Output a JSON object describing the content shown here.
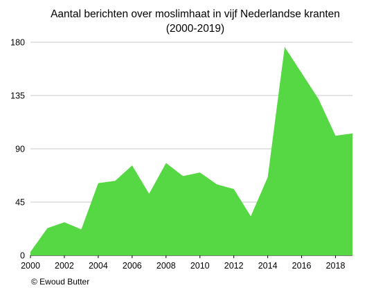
{
  "chart_data": {
    "type": "area",
    "title": "Aantal berichten over moslimhaat in vijf Nederlandse kranten",
    "subtitle": "(2000-2019)",
    "xlabel": "",
    "ylabel": "",
    "x": [
      2000,
      2001,
      2002,
      2003,
      2004,
      2005,
      2006,
      2007,
      2008,
      2009,
      2010,
      2011,
      2012,
      2013,
      2014,
      2015,
      2016,
      2017,
      2018,
      2019
    ],
    "series": [
      {
        "values": [
          3,
          23,
          28,
          22,
          61,
          63,
          76,
          52,
          78,
          67,
          70,
          60,
          56,
          33,
          66,
          176,
          154,
          132,
          101,
          103
        ]
      }
    ],
    "xlim": [
      2000,
      2019
    ],
    "ylim": [
      0,
      180
    ],
    "xticks": [
      2000,
      2002,
      2004,
      2006,
      2008,
      2010,
      2012,
      2014,
      2016,
      2018
    ],
    "yticks": [
      0,
      45,
      90,
      135,
      180
    ],
    "grid": true,
    "legend": "none",
    "fill_color": "#55d843",
    "grid_color": "#c8c8c8"
  },
  "credit": "© Ewoud Butter"
}
